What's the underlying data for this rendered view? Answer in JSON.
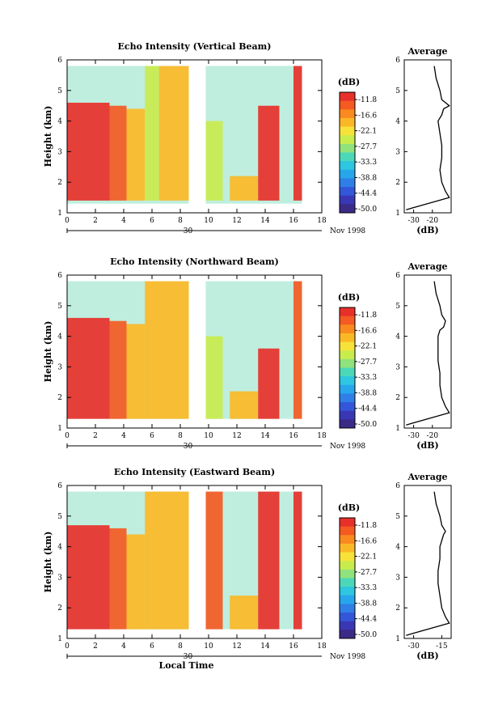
{
  "chart_data": [
    {
      "type": "heatmap",
      "title": "Echo Intensity (Vertical Beam)",
      "ylabel": "Height (km)",
      "xlim": [
        0,
        18
      ],
      "ylim": [
        1,
        6
      ],
      "xticks": [
        "0",
        "2",
        "4",
        "6",
        "8",
        "10",
        "12",
        "14",
        "16",
        "18"
      ],
      "yticks": [
        "1",
        "2",
        "3",
        "4",
        "5",
        "6"
      ],
      "date_day": "30",
      "date_label": "Nov 1998",
      "colorbar": {
        "unit": "(dB)",
        "ticks": [
          "-11.8",
          "-16.6",
          "-22.1",
          "-27.7",
          "-33.3",
          "-38.8",
          "-44.4",
          "-50.0"
        ],
        "colors": [
          "#e8302a",
          "#f45a22",
          "#f98a1f",
          "#fbb826",
          "#f7e23a",
          "#c9ec4d",
          "#8fe27c",
          "#4cd8b8",
          "#2ec6e0",
          "#27a6ec",
          "#2f7fe6",
          "#3357d8",
          "#3a37b5",
          "#3b2a86"
        ]
      },
      "cells": [
        {
          "x0": 0,
          "x1": 3,
          "y0": 1.4,
          "y1": 4.6,
          "level": -11.8
        },
        {
          "x0": 3,
          "x1": 4.2,
          "y0": 1.4,
          "y1": 4.5,
          "level": -16.6
        },
        {
          "x0": 4.2,
          "x1": 5.5,
          "y0": 1.4,
          "y1": 4.4,
          "level": -22.1
        },
        {
          "x0": 5.5,
          "x1": 6.5,
          "y0": 1.4,
          "y1": 5.8,
          "level": -27.7
        },
        {
          "x0": 6.5,
          "x1": 8.6,
          "y0": 1.4,
          "y1": 5.8,
          "level": -22.1
        },
        {
          "x0": 9.8,
          "x1": 11,
          "y0": 1.4,
          "y1": 4,
          "level": -27.7
        },
        {
          "x0": 11.5,
          "x1": 13.5,
          "y0": 1.4,
          "y1": 2.2,
          "level": -22.1
        },
        {
          "x0": 13.5,
          "x1": 15,
          "y0": 1.4,
          "y1": 4.5,
          "level": -11.8
        },
        {
          "x0": 16,
          "x1": 16.6,
          "y0": 1.4,
          "y1": 5.8,
          "level": -11.8
        }
      ],
      "average": {
        "title": "Average",
        "xlabel": "(dB)",
        "xlim": [
          -35,
          -10
        ],
        "xticks": [
          "-30",
          "-20"
        ],
        "yticks": [
          "1",
          "2",
          "3",
          "4",
          "5",
          "6"
        ],
        "x": [
          -34,
          -11,
          -13,
          -15,
          -16,
          -15,
          -15,
          -16,
          -17,
          -15,
          -14,
          -11,
          -15,
          -16,
          -18,
          -19
        ],
        "y": [
          1.1,
          1.5,
          1.7,
          2.0,
          2.4,
          2.8,
          3.2,
          3.6,
          4.0,
          4.2,
          4.4,
          4.5,
          4.7,
          5.0,
          5.4,
          5.8
        ]
      }
    },
    {
      "type": "heatmap",
      "title": "Echo Intensity (Northward Beam)",
      "ylabel": "Height (km)",
      "xlim": [
        0,
        18
      ],
      "ylim": [
        1,
        6
      ],
      "xticks": [
        "0",
        "2",
        "4",
        "6",
        "8",
        "10",
        "12",
        "14",
        "16",
        "18"
      ],
      "yticks": [
        "1",
        "2",
        "3",
        "4",
        "5",
        "6"
      ],
      "date_day": "30",
      "date_label": "Nov 1998",
      "colorbar": {
        "unit": "(dB)",
        "ticks": [
          "-11.8",
          "-16.6",
          "-22.1",
          "-27.7",
          "-33.3",
          "-38.8",
          "-44.4",
          "-50.0"
        ],
        "colors": [
          "#e8302a",
          "#f45a22",
          "#f98a1f",
          "#fbb826",
          "#f7e23a",
          "#c9ec4d",
          "#8fe27c",
          "#4cd8b8",
          "#2ec6e0",
          "#27a6ec",
          "#2f7fe6",
          "#3357d8",
          "#3a37b5",
          "#3b2a86"
        ]
      },
      "cells": [
        {
          "x0": 0,
          "x1": 3,
          "y0": 1.3,
          "y1": 4.6,
          "level": -11.8
        },
        {
          "x0": 3,
          "x1": 4.2,
          "y0": 1.3,
          "y1": 4.5,
          "level": -16.6
        },
        {
          "x0": 4.2,
          "x1": 5.5,
          "y0": 1.3,
          "y1": 4.4,
          "level": -22.1
        },
        {
          "x0": 5.5,
          "x1": 8.6,
          "y0": 1.3,
          "y1": 5.8,
          "level": -22.1
        },
        {
          "x0": 9.8,
          "x1": 11,
          "y0": 1.3,
          "y1": 4,
          "level": -27.7
        },
        {
          "x0": 11.5,
          "x1": 13.5,
          "y0": 1.3,
          "y1": 2.2,
          "level": -22.1
        },
        {
          "x0": 13.5,
          "x1": 15,
          "y0": 1.3,
          "y1": 3.6,
          "level": -11.8
        },
        {
          "x0": 16,
          "x1": 16.6,
          "y0": 1.3,
          "y1": 5.8,
          "level": -16.6
        }
      ],
      "average": {
        "title": "Average",
        "xlabel": "(dB)",
        "xlim": [
          -35,
          -10
        ],
        "xticks": [
          "-30",
          "-20"
        ],
        "yticks": [
          "1",
          "2",
          "3",
          "4",
          "5",
          "6"
        ],
        "x": [
          -34,
          -11,
          -13,
          -15,
          -16,
          -16,
          -17,
          -17,
          -17,
          -16,
          -14,
          -13,
          -15,
          -16,
          -18,
          -19
        ],
        "y": [
          1.1,
          1.5,
          1.7,
          2.0,
          2.4,
          2.8,
          3.2,
          3.6,
          4.0,
          4.2,
          4.3,
          4.5,
          4.7,
          5.0,
          5.4,
          5.8
        ]
      }
    },
    {
      "type": "heatmap",
      "title": "Echo Intensity (Eastward Beam)",
      "ylabel": "Height (km)",
      "xlabel": "Local Time",
      "xlim": [
        0,
        18
      ],
      "ylim": [
        1,
        6
      ],
      "xticks": [
        "0",
        "2",
        "4",
        "6",
        "8",
        "10",
        "12",
        "14",
        "16",
        "18"
      ],
      "yticks": [
        "1",
        "2",
        "3",
        "4",
        "5",
        "6"
      ],
      "date_day": "30",
      "date_label": "Nov 1998",
      "colorbar": {
        "unit": "(dB)",
        "ticks": [
          "-11.8",
          "-16.6",
          "-22.1",
          "-27.7",
          "-33.3",
          "-38.8",
          "-44.4",
          "-50.0"
        ],
        "colors": [
          "#e8302a",
          "#f45a22",
          "#f98a1f",
          "#fbb826",
          "#f7e23a",
          "#c9ec4d",
          "#8fe27c",
          "#4cd8b8",
          "#2ec6e0",
          "#27a6ec",
          "#2f7fe6",
          "#3357d8",
          "#3a37b5",
          "#3b2a86"
        ]
      },
      "cells": [
        {
          "x0": 0,
          "x1": 3,
          "y0": 1.3,
          "y1": 4.7,
          "level": -11.8
        },
        {
          "x0": 3,
          "x1": 4.2,
          "y0": 1.3,
          "y1": 4.6,
          "level": -16.6
        },
        {
          "x0": 4.2,
          "x1": 5.5,
          "y0": 1.3,
          "y1": 4.4,
          "level": -22.1
        },
        {
          "x0": 5.5,
          "x1": 8.6,
          "y0": 1.3,
          "y1": 5.8,
          "level": -22.1
        },
        {
          "x0": 9.8,
          "x1": 11,
          "y0": 1.3,
          "y1": 5.8,
          "level": -16.6
        },
        {
          "x0": 11.5,
          "x1": 13.5,
          "y0": 1.3,
          "y1": 2.4,
          "level": -22.1
        },
        {
          "x0": 13.5,
          "x1": 15,
          "y0": 1.3,
          "y1": 5.8,
          "level": -11.8
        },
        {
          "x0": 16,
          "x1": 16.6,
          "y0": 1.3,
          "y1": 5.8,
          "level": -11.8
        }
      ],
      "average": {
        "title": "Average",
        "xlabel": "(dB)",
        "xlim": [
          -35,
          -10
        ],
        "xticks": [
          "-30",
          "-15"
        ],
        "yticks": [
          "1",
          "2",
          "3",
          "4",
          "5",
          "6"
        ],
        "x": [
          -34,
          -11,
          -13,
          -15,
          -16,
          -17,
          -17,
          -16,
          -16,
          -15,
          -14,
          -13,
          -15,
          -16,
          -18,
          -19
        ],
        "y": [
          1.1,
          1.5,
          1.7,
          2.0,
          2.4,
          2.8,
          3.2,
          3.6,
          4.0,
          4.2,
          4.4,
          4.5,
          4.7,
          5.0,
          5.4,
          5.8
        ]
      }
    }
  ]
}
